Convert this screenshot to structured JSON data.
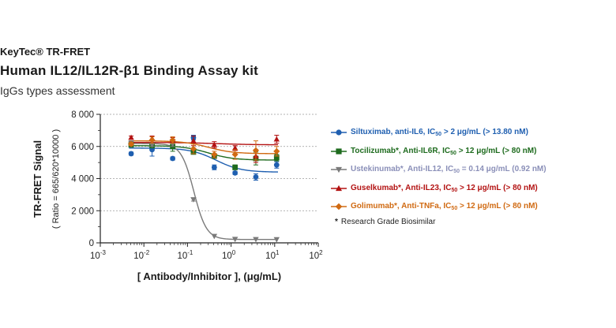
{
  "header": {
    "brand": "KeyTec® TR-FRET",
    "title": "Human IL12/IL12R-β1 Binding Assay kit",
    "subtitle": "IgGs types assessment"
  },
  "note": {
    "star": "*",
    "text": "Research Grade Biosimilar"
  },
  "chart_data": {
    "type": "scatter",
    "title": "Human IL12/IL12R-β1 Binding Assay kit",
    "subtitle": "IgGs types assessment",
    "xlabel": "[ Antibody/Inhibitor ],  (μg/mL)",
    "ylabel": "TR-FRET Signal",
    "ylabel2": "( Ratio = 665/620*10000 )",
    "x_scale": "log",
    "xlim": [
      0.001,
      100
    ],
    "ylim": [
      0,
      8000
    ],
    "x_ticks": [
      {
        "value": 0.001,
        "base": "10",
        "exp": "-3"
      },
      {
        "value": 0.01,
        "base": "10",
        "exp": "-2"
      },
      {
        "value": 0.1,
        "base": "10",
        "exp": "-1"
      },
      {
        "value": 1,
        "base": "10",
        "exp": "0"
      },
      {
        "value": 10,
        "base": "10",
        "exp": "1"
      },
      {
        "value": 100,
        "base": "10",
        "exp": "2"
      }
    ],
    "y_ticks": [
      {
        "value": 0,
        "label": "0"
      },
      {
        "value": 2000,
        "label": "2 000"
      },
      {
        "value": 4000,
        "label": "4 000"
      },
      {
        "value": 6000,
        "label": "6 000"
      },
      {
        "value": 8000,
        "label": "8 000"
      }
    ],
    "grid": "horizontal dotted",
    "legend_position": "right",
    "x": [
      0.0051,
      0.0154,
      0.0457,
      0.137,
      0.412,
      1.235,
      3.7,
      11.1
    ],
    "series": [
      {
        "name": "Siltuximab, anti-IL6, IC50 > 2 μg/mL (> 13.80 nM)",
        "legend_prefix": "Siltuximab, anti-IL6, IC",
        "legend_sub": "50",
        "legend_suffix": " > 2 μg/mL (> 13.80 nM)",
        "color": "#1f5fb0",
        "marker": "circle",
        "values": [
          5550,
          5800,
          5250,
          6550,
          4700,
          4350,
          4100,
          4850
        ],
        "errors": [
          100,
          400,
          100,
          150,
          150,
          100,
          200,
          200
        ],
        "fit": {
          "top": 5900,
          "bottom": 4400,
          "ic50": 0.45,
          "hill": 1.5
        }
      },
      {
        "name": "Tocilizumab*, Anti-IL6R, IC50 > 12 μg/mL (> 80 nM)",
        "legend_prefix": "Tocilizumab*, Anti-IL6R, IC",
        "legend_sub": "50",
        "legend_suffix": " > 12 μg/mL (> 80 nM)",
        "color": "#1e6b1e",
        "marker": "square",
        "values": [
          6100,
          6050,
          6000,
          5650,
          5400,
          4700,
          5250,
          5300
        ],
        "errors": [
          100,
          100,
          300,
          100,
          150,
          150,
          400,
          200
        ],
        "fit": {
          "top": 6050,
          "bottom": 5150,
          "ic50": 0.3,
          "hill": 1.5
        }
      },
      {
        "name": "Ustekinumab*, Anti-IL12, IC50 = 0.14 μg/mL (0.92 nM)",
        "legend_prefix": "Ustekinumab*, Anti-IL12, IC",
        "legend_sub": "50",
        "legend_suffix": " = 0.14 μg/mL (0.92 nM)",
        "color": "#7a7a7a",
        "text_color": "#8a8fb8",
        "marker": "triangle-down",
        "values": [
          6200,
          6100,
          6150,
          2700,
          420,
          230,
          220,
          210
        ],
        "errors": [
          150,
          100,
          150,
          100,
          0,
          0,
          0,
          0
        ],
        "fit": {
          "top": 6180,
          "bottom": 210,
          "ic50": 0.14,
          "hill": 3
        }
      },
      {
        "name": "Guselkumab*, Anti-IL23, IC50 > 12 μg/mL (> 80 nM)",
        "legend_prefix": "Guselkumab*, Anti-IL23, IC",
        "legend_sub": "50",
        "legend_suffix": " > 12 μg/mL (> 80 nM)",
        "color": "#b31212",
        "marker": "triangle-up",
        "values": [
          6550,
          6500,
          6400,
          6350,
          6100,
          5900,
          5400,
          6450
        ],
        "errors": [
          100,
          150,
          150,
          300,
          200,
          150,
          400,
          250
        ],
        "fit": {
          "top": 6250,
          "bottom": 6100,
          "ic50": 0.5,
          "hill": 1
        }
      },
      {
        "name": "Golimumab*, Anti-TNFa, IC50 > 12 μg/mL (> 80 nM)",
        "legend_prefix": "Golimumab*, Anti-TNFa, IC",
        "legend_sub": "50",
        "legend_suffix": " > 12 μg/mL (> 80 nM)",
        "color": "#d06a12",
        "marker": "diamond",
        "values": [
          6150,
          6400,
          6400,
          5850,
          5500,
          5500,
          5750,
          5700
        ],
        "errors": [
          100,
          200,
          200,
          300,
          200,
          300,
          600,
          300
        ],
        "fit": {
          "top": 6350,
          "bottom": 5550,
          "ic50": 0.3,
          "hill": 1.5
        }
      }
    ]
  }
}
